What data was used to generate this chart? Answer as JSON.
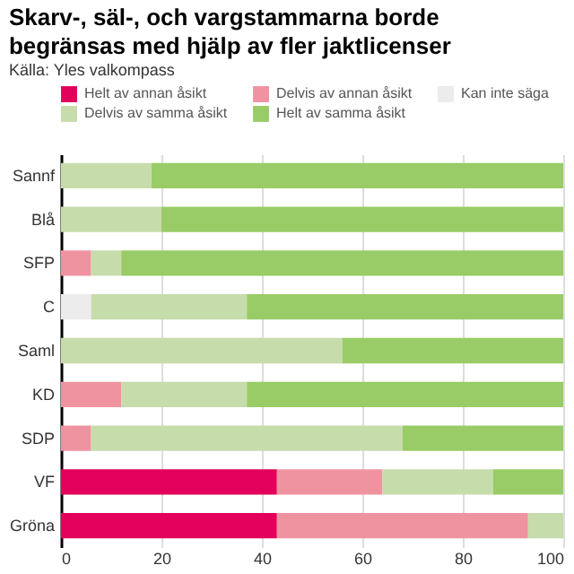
{
  "chart_data": {
    "type": "bar",
    "orientation": "horizontal",
    "stacked": true,
    "title": "Skarv-, säl-, och vargstammarna borde begränsas med hjälp av fler jaktlicenser",
    "subtitle": "Källa: Yles valkompass",
    "categories": [
      "Sannf",
      "Blå",
      "SFP",
      "C",
      "Saml",
      "KD",
      "SDP",
      "VF",
      "Gröna"
    ],
    "series": [
      {
        "name": "Helt av annan åsikt",
        "color": "#e2005a",
        "values": [
          0,
          0,
          0,
          0,
          0,
          0,
          0,
          43,
          43
        ]
      },
      {
        "name": "Delvis av annan åsikt",
        "color": "#f093a0",
        "values": [
          0,
          0,
          6,
          0,
          0,
          12,
          6,
          21,
          50
        ]
      },
      {
        "name": "Kan inte säga",
        "color": "#ececec",
        "values": [
          0,
          0,
          0,
          6,
          0,
          0,
          0,
          0,
          0
        ]
      },
      {
        "name": "Delvis av samma åsikt",
        "color": "#c6dcab",
        "values": [
          18,
          20,
          6,
          31,
          56,
          25,
          62,
          22,
          7
        ]
      },
      {
        "name": "Helt av samma åsikt",
        "color": "#99cc66",
        "values": [
          82,
          80,
          88,
          63,
          44,
          63,
          32,
          14,
          0
        ]
      }
    ],
    "xlim": [
      0,
      100
    ],
    "xticks": [
      0,
      20,
      40,
      60,
      80,
      100
    ],
    "grid": "x",
    "legend": "top"
  }
}
